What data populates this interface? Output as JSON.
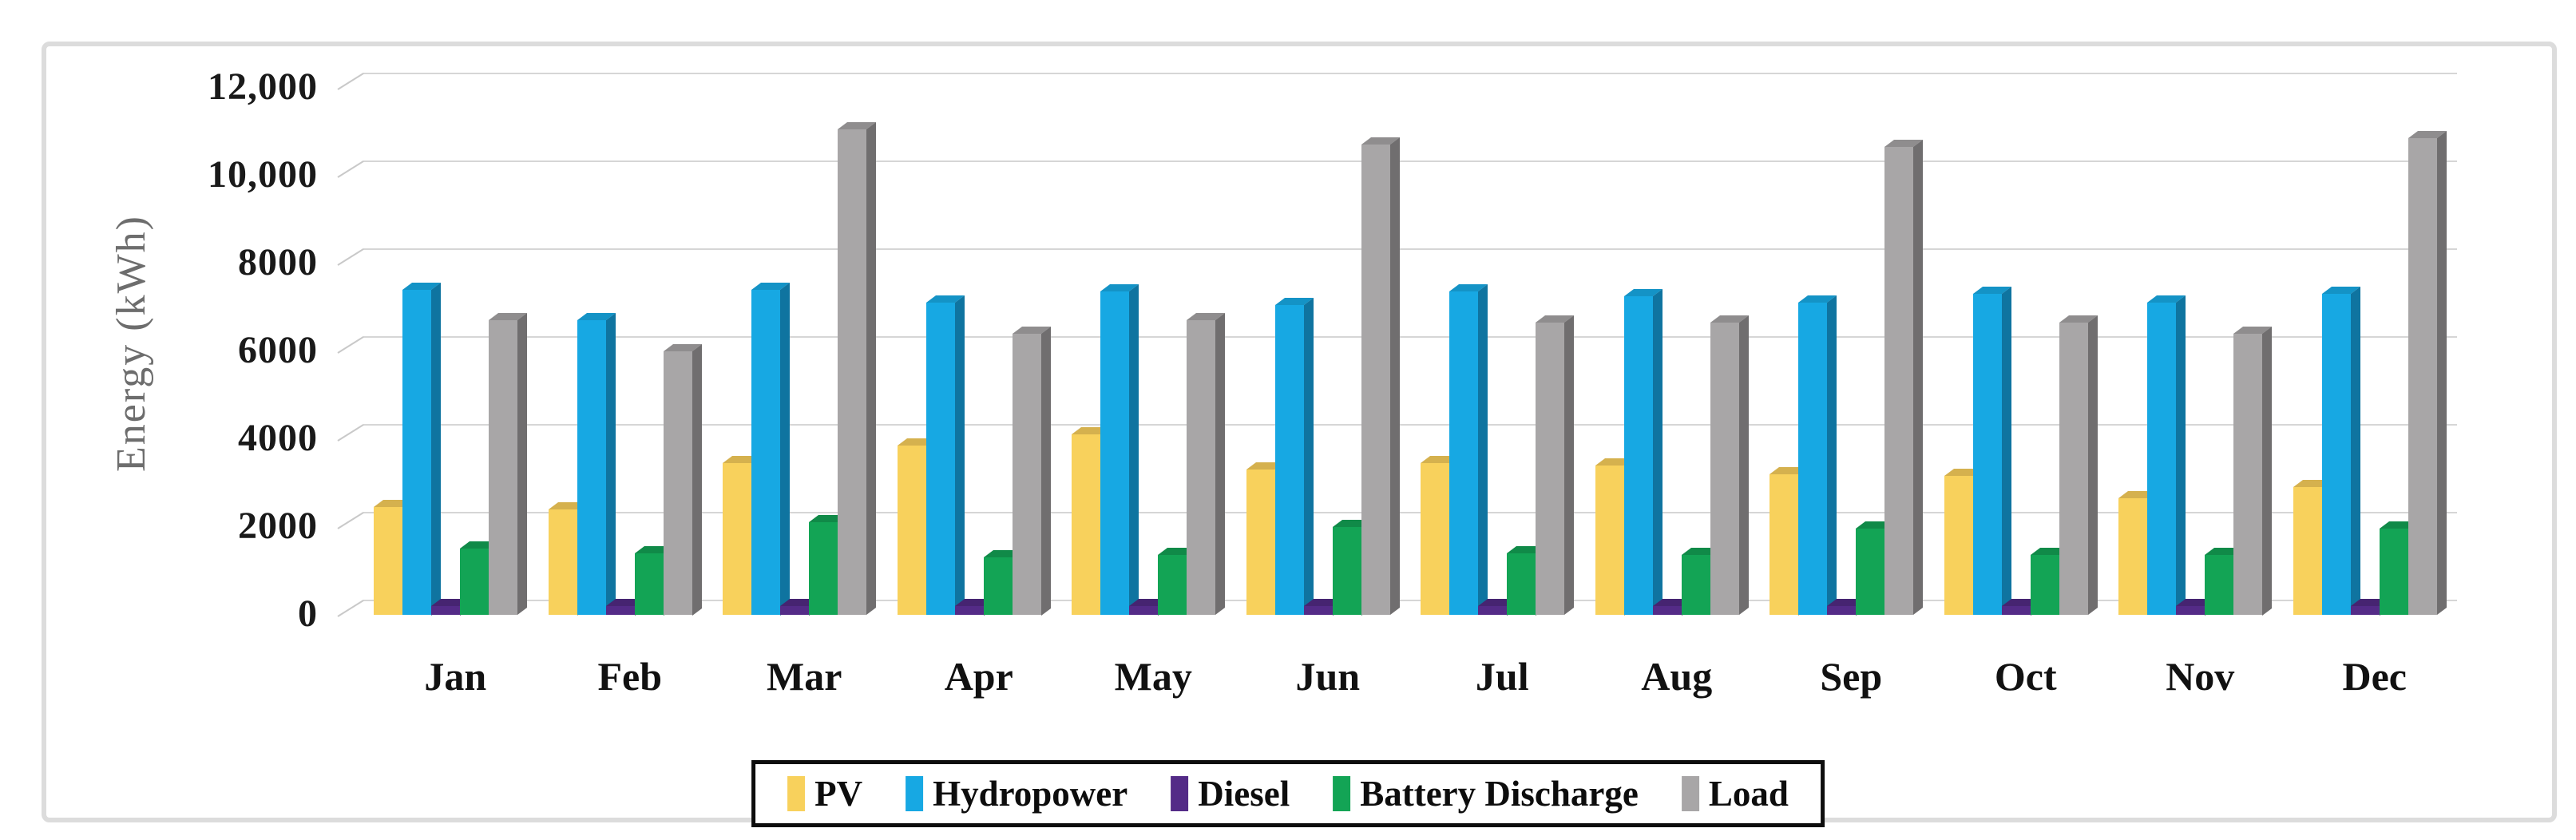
{
  "chart_data": {
    "type": "bar",
    "title": "",
    "xlabel": "",
    "ylabel": "Energy  (kWh)",
    "categories": [
      "Jan",
      "Feb",
      "Mar",
      "Apr",
      "May",
      "Jun",
      "Jul",
      "Aug",
      "Sep",
      "Oct",
      "Nov",
      "Dec"
    ],
    "series": [
      {
        "name": "PV",
        "color": "#F8D15C",
        "top_color": "#D5B14E",
        "side_color": "#C39B3F",
        "values": [
          2350,
          2300,
          3350,
          3750,
          4000,
          3200,
          3350,
          3300,
          3100,
          3050,
          2550,
          2800
        ]
      },
      {
        "name": "Hydropower",
        "color": "#17A8E3",
        "top_color": "#1493C6",
        "side_color": "#0F74A0",
        "values": [
          7300,
          6600,
          7300,
          7000,
          7250,
          6950,
          7250,
          7150,
          7000,
          7200,
          7000,
          7200
        ]
      },
      {
        "name": "Diesel",
        "color": "#542B87",
        "top_color": "#462471",
        "side_color": "#3A1E5D",
        "values": [
          100,
          100,
          100,
          100,
          100,
          100,
          100,
          100,
          100,
          100,
          100,
          100
        ]
      },
      {
        "name": "Battery Discharge",
        "color": "#13A455",
        "top_color": "#108A48",
        "side_color": "#0B6B38",
        "values": [
          1400,
          1300,
          2000,
          1200,
          1250,
          1900,
          1300,
          1250,
          1850,
          1250,
          1250,
          1850
        ]
      },
      {
        "name": "Load",
        "color": "#A8A6A7",
        "top_color": "#8F8D8E",
        "side_color": "#706E6F",
        "values": [
          6600,
          5900,
          10950,
          6300,
          6600,
          10600,
          6550,
          6550,
          10550,
          6550,
          6300,
          10750
        ]
      }
    ],
    "ylim": [
      0,
      12000
    ],
    "ytick_interval": 2000,
    "ytick_labels": [
      "0",
      "2000",
      "4000",
      "6000",
      "8000",
      "10,000",
      "12,000"
    ],
    "grid": true,
    "effect": "3d",
    "legend_position": "bottom"
  }
}
